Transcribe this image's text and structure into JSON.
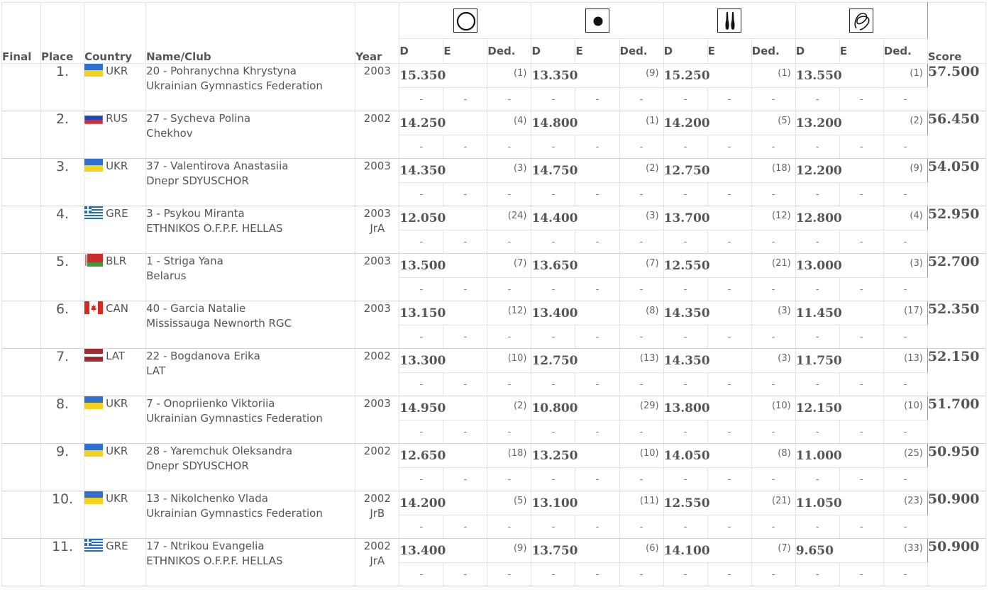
{
  "headers": {
    "final": "Final",
    "place": "Place",
    "country": "Country",
    "name_club": "Name/Club",
    "year": "Year",
    "score": "Score",
    "apparatus": [
      {
        "icon": "hoop-icon",
        "d": "D",
        "e": "E",
        "ded": "Ded."
      },
      {
        "icon": "ball-icon",
        "d": "D",
        "e": "E",
        "ded": "Ded."
      },
      {
        "icon": "clubs-icon",
        "d": "D",
        "e": "E",
        "ded": "Ded."
      },
      {
        "icon": "ribbon-icon",
        "d": "D",
        "e": "E",
        "ded": "Ded."
      }
    ]
  },
  "flags": {
    "UKR": "ukraine-flag-icon",
    "RUS": "russia-flag-icon",
    "GRE": "greece-flag-icon",
    "BLR": "belarus-flag-icon",
    "CAN": "canada-flag-icon",
    "LAT": "latvia-flag-icon"
  },
  "dash": "-",
  "rows": [
    {
      "place": "1.",
      "country": "UKR",
      "name": "20 - Pohranychna Khrystyna",
      "club": "Ukrainian Gymnastics Federation",
      "year": "2003",
      "year_note": "",
      "scores": [
        {
          "v": "15.350",
          "r": "(1)"
        },
        {
          "v": "13.350",
          "r": "(9)"
        },
        {
          "v": "15.250",
          "r": "(1)"
        },
        {
          "v": "13.550",
          "r": "(1)"
        }
      ],
      "total": "57.500"
    },
    {
      "place": "2.",
      "country": "RUS",
      "name": "27 - Sycheva Polina",
      "club": "Chekhov",
      "year": "2002",
      "year_note": "",
      "scores": [
        {
          "v": "14.250",
          "r": "(4)"
        },
        {
          "v": "14.800",
          "r": "(1)"
        },
        {
          "v": "14.200",
          "r": "(5)"
        },
        {
          "v": "13.200",
          "r": "(2)"
        }
      ],
      "total": "56.450"
    },
    {
      "place": "3.",
      "country": "UKR",
      "name": "37 - Valentirova Anastasiia",
      "club": "Dnepr SDYUSCHOR",
      "year": "2003",
      "year_note": "",
      "scores": [
        {
          "v": "14.350",
          "r": "(3)"
        },
        {
          "v": "14.750",
          "r": "(2)"
        },
        {
          "v": "12.750",
          "r": "(18)"
        },
        {
          "v": "12.200",
          "r": "(9)"
        }
      ],
      "total": "54.050"
    },
    {
      "place": "4.",
      "country": "GRE",
      "name": "3 - Psykou Miranta",
      "club": "ETHNIKOS O.F.P.F. HELLAS",
      "year": "2003",
      "year_note": "JrA",
      "scores": [
        {
          "v": "12.050",
          "r": "(24)"
        },
        {
          "v": "14.400",
          "r": "(3)"
        },
        {
          "v": "13.700",
          "r": "(12)"
        },
        {
          "v": "12.800",
          "r": "(4)"
        }
      ],
      "total": "52.950"
    },
    {
      "place": "5.",
      "country": "BLR",
      "name": "1 - Striga Yana",
      "club": "Belarus",
      "year": "2003",
      "year_note": "",
      "scores": [
        {
          "v": "13.500",
          "r": "(7)"
        },
        {
          "v": "13.650",
          "r": "(7)"
        },
        {
          "v": "12.550",
          "r": "(21)"
        },
        {
          "v": "13.000",
          "r": "(3)"
        }
      ],
      "total": "52.700"
    },
    {
      "place": "6.",
      "country": "CAN",
      "name": "40 - Garcia Natalie",
      "club": "Mississauga Newnorth RGC",
      "year": "2003",
      "year_note": "",
      "scores": [
        {
          "v": "13.150",
          "r": "(12)"
        },
        {
          "v": "13.400",
          "r": "(8)"
        },
        {
          "v": "14.350",
          "r": "(3)"
        },
        {
          "v": "11.450",
          "r": "(17)"
        }
      ],
      "total": "52.350"
    },
    {
      "place": "7.",
      "country": "LAT",
      "name": "22 - Bogdanova Erika",
      "club": "LAT",
      "year": "2002",
      "year_note": "",
      "scores": [
        {
          "v": "13.300",
          "r": "(10)"
        },
        {
          "v": "12.750",
          "r": "(13)"
        },
        {
          "v": "14.350",
          "r": "(3)"
        },
        {
          "v": "11.750",
          "r": "(13)"
        }
      ],
      "total": "52.150"
    },
    {
      "place": "8.",
      "country": "UKR",
      "name": "7 - Onopriienko Viktoriia",
      "club": "Ukrainian Gymnastics Federation",
      "year": "2003",
      "year_note": "",
      "scores": [
        {
          "v": "14.950",
          "r": "(2)"
        },
        {
          "v": "10.800",
          "r": "(29)"
        },
        {
          "v": "13.800",
          "r": "(10)"
        },
        {
          "v": "12.150",
          "r": "(10)"
        }
      ],
      "total": "51.700"
    },
    {
      "place": "9.",
      "country": "UKR",
      "name": "28 - Yaremchuk Oleksandra",
      "club": "Dnepr SDYUSCHOR",
      "year": "2002",
      "year_note": "",
      "scores": [
        {
          "v": "12.650",
          "r": "(18)"
        },
        {
          "v": "13.250",
          "r": "(10)"
        },
        {
          "v": "14.050",
          "r": "(8)"
        },
        {
          "v": "11.000",
          "r": "(25)"
        }
      ],
      "total": "50.950"
    },
    {
      "place": "10.",
      "country": "UKR",
      "name": "13 - Nikolchenko Vlada",
      "club": "Ukrainian Gymnastics Federation",
      "year": "2002",
      "year_note": "JrB",
      "scores": [
        {
          "v": "14.200",
          "r": "(5)"
        },
        {
          "v": "13.100",
          "r": "(11)"
        },
        {
          "v": "12.550",
          "r": "(21)"
        },
        {
          "v": "11.050",
          "r": "(23)"
        }
      ],
      "total": "50.900"
    },
    {
      "place": "11.",
      "country": "GRE",
      "name": "17 - Ntrikou Evangelia",
      "club": "ETHNIKOS O.F.P.F. HELLAS",
      "year": "2002",
      "year_note": "JrA",
      "scores": [
        {
          "v": "13.400",
          "r": "(9)"
        },
        {
          "v": "13.750",
          "r": "(6)"
        },
        {
          "v": "14.100",
          "r": "(7)"
        },
        {
          "v": "9.650",
          "r": "(33)"
        }
      ],
      "total": "50.900"
    }
  ]
}
